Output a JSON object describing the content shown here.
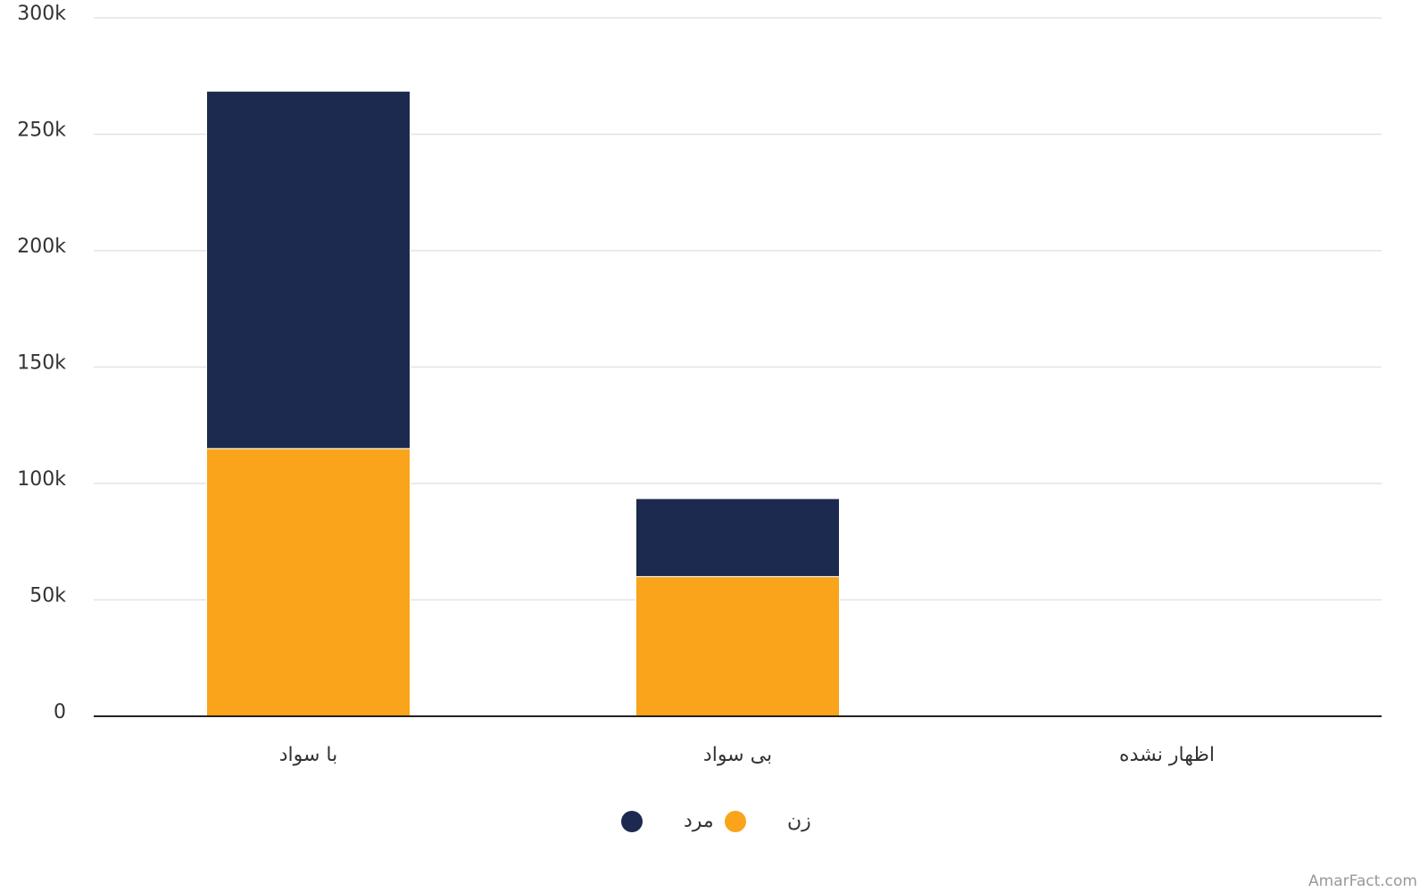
{
  "chart_data": {
    "type": "stacked_bar",
    "categories": [
      "با سواد",
      "بی سواد",
      "اظهار نشده"
    ],
    "series": [
      {
        "name": "زن",
        "color": "#f9a41a",
        "values": [
          115000,
          60000,
          0
        ]
      },
      {
        "name": "مرد",
        "color": "#1b2a4e",
        "values": [
          153500,
          33500,
          0
        ]
      }
    ],
    "ylim": [
      0,
      300000
    ],
    "yticks": [
      0,
      {
        "value": 50000,
        "label": "50k"
      },
      {
        "value": 100000,
        "label": "100k"
      },
      {
        "value": 150000,
        "label": "150k"
      },
      {
        "value": 200000,
        "label": "200k"
      },
      {
        "value": 250000,
        "label": "250k"
      },
      {
        "value": 300000,
        "label": "300k"
      }
    ],
    "grid": true,
    "watermark": "AmarFact.com"
  }
}
